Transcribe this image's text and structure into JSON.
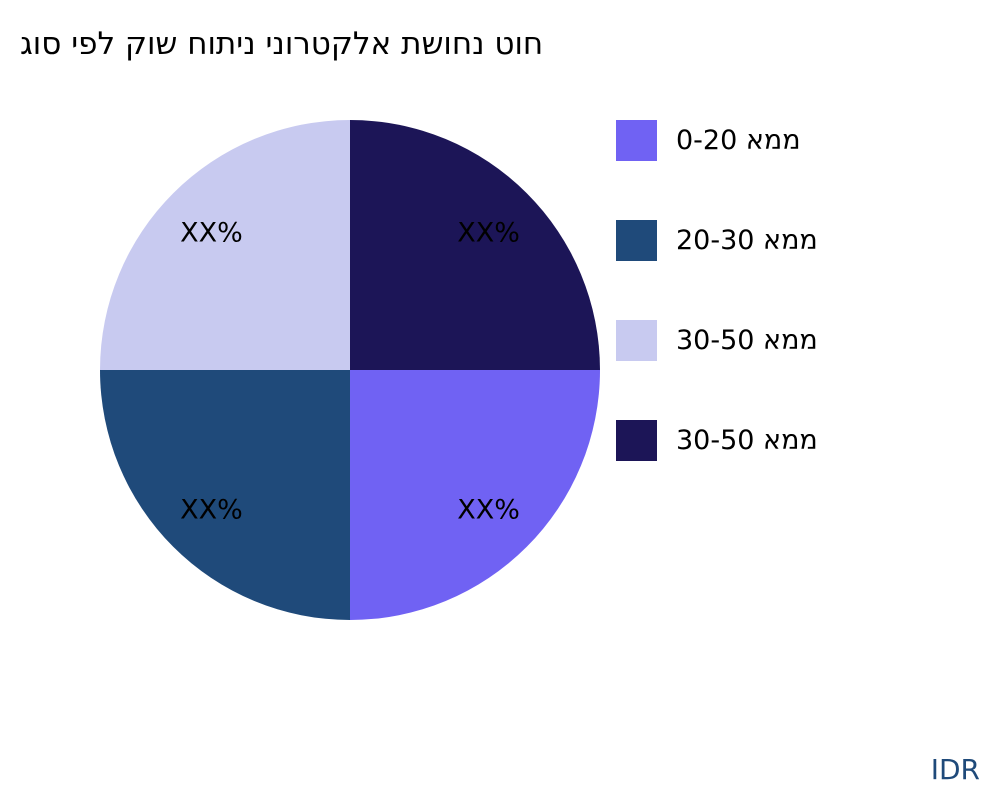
{
  "chart_data": {
    "type": "pie",
    "title": "גוס יפל קוש חותינ ינורטקלא תשוחנ טוח",
    "slices": [
      {
        "label": "0-20 אממ",
        "value": 25,
        "data_label": "XX%",
        "color": "#7062f3"
      },
      {
        "label": "20-30 אממ",
        "value": 25,
        "data_label": "XX%",
        "color": "#1f4a7a"
      },
      {
        "label": "30-50 אממ",
        "value": 25,
        "data_label": "XX%",
        "color": "#c8caf0"
      },
      {
        "label": "30-50 אממ",
        "value": 25,
        "data_label": "XX%",
        "color": "#1c1557"
      }
    ],
    "legend_position": "right"
  },
  "brand": "IDR"
}
